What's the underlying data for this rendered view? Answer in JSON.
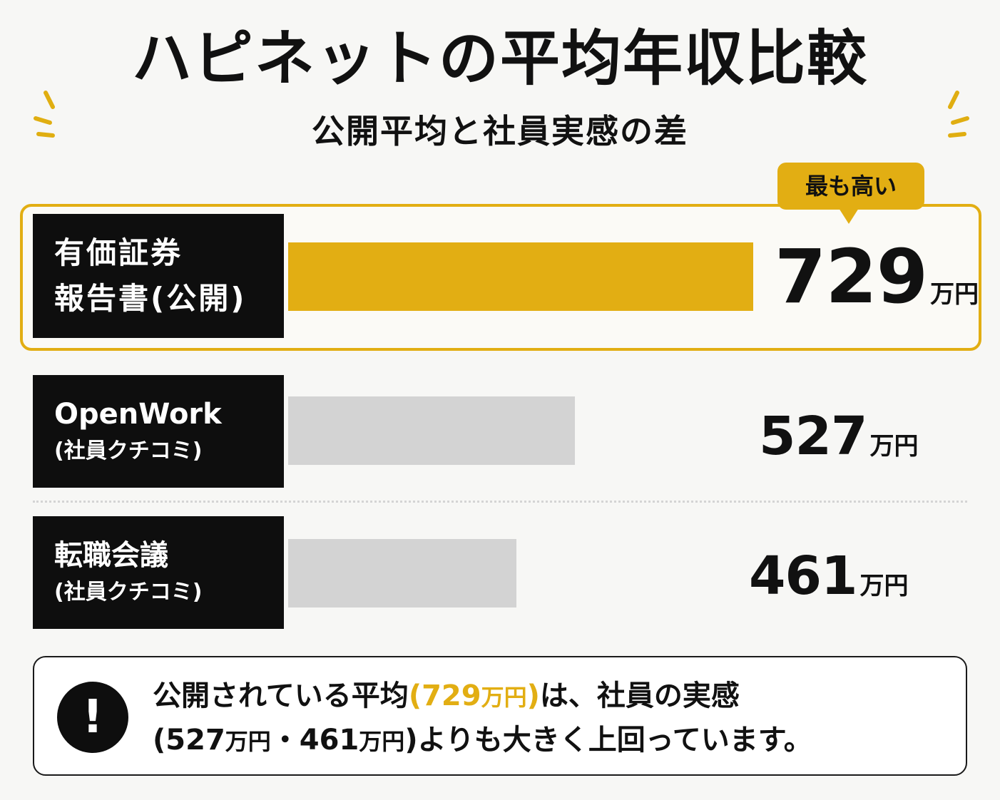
{
  "chart_data": {
    "type": "bar",
    "orientation": "horizontal",
    "title": "ハピネットの平均年収比較",
    "subtitle": "公開平均と社員実感の差",
    "categories": [
      {
        "line1": "有価証券",
        "line2": "報告書(公開)"
      },
      {
        "line1": "OpenWork",
        "line2": "(社員クチコミ)"
      },
      {
        "line1": "転職会議",
        "line2": "(社員クチコミ)"
      }
    ],
    "series": [
      {
        "values": [
          729,
          527,
          461
        ]
      }
    ],
    "unit": "万円",
    "highlight_index": 0,
    "highlight_badge": "最も高い",
    "colors": {
      "highlight": "#e2ae13",
      "other": "#d3d3d3",
      "label_bg": "#0e0e0e"
    },
    "xlim": [
      300,
      729
    ]
  },
  "note": {
    "icon": "exclamation-icon",
    "line1_before": "公開されている平均",
    "line1_highlight_num": "(729",
    "line1_highlight_unit": "万円",
    "line1_highlight_close": ")",
    "line1_after": "は、社員の実感",
    "line2_open": "(527",
    "line2_unit1": "万円",
    "line2_mid": "・461",
    "line2_unit2": "万円",
    "line2_after": ")よりも大きく上回っています。"
  }
}
